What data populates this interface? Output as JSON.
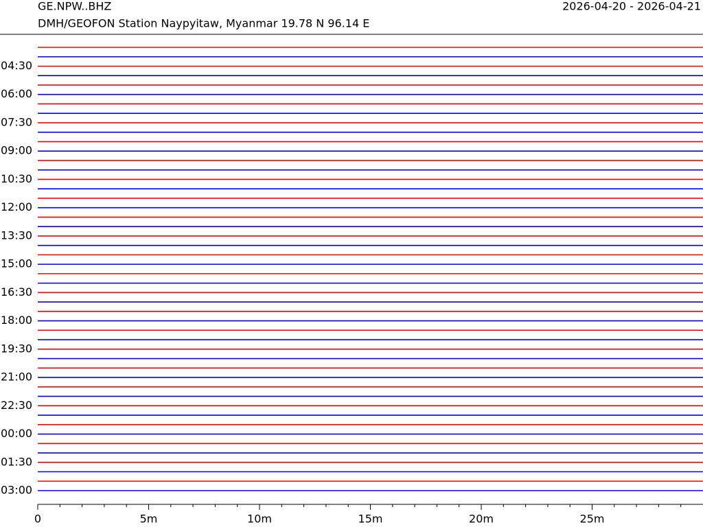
{
  "chart_data": {
    "type": "helicorder",
    "title": "GE.NPW..BHZ",
    "subtitle": "DMH/GEOFON Station Naypyitaw, Myanmar  19.78 N 96.14 E",
    "date_range": "2026-04-20 - 2026-04-21",
    "colors": [
      "#ff0000",
      "#0000ff"
    ],
    "row_step": 0.5,
    "ylim": [
      3.5,
      27
    ],
    "yticks": [
      {
        "value": 4.5,
        "label": "04:30"
      },
      {
        "value": 6,
        "label": "06:00"
      },
      {
        "value": 7.5,
        "label": "07:30"
      },
      {
        "value": 9,
        "label": "09:00"
      },
      {
        "value": 10.5,
        "label": "10:30"
      },
      {
        "value": 12,
        "label": "12:00"
      },
      {
        "value": 13.5,
        "label": "13:30"
      },
      {
        "value": 15,
        "label": "15:00"
      },
      {
        "value": 16.5,
        "label": "16:30"
      },
      {
        "value": 18,
        "label": "18:00"
      },
      {
        "value": 19.5,
        "label": "19:30"
      },
      {
        "value": 21,
        "label": "21:00"
      },
      {
        "value": 22.5,
        "label": "22:30"
      },
      {
        "value": 24,
        "label": "00:00"
      },
      {
        "value": 25.5,
        "label": "01:30"
      },
      {
        "value": 27,
        "label": "03:00"
      }
    ],
    "xlim": [
      0,
      30
    ],
    "xticks": [
      0,
      {
        "value": 5,
        "label": "5m"
      },
      {
        "value": 10,
        "label": "10m"
      },
      {
        "value": 15,
        "label": "15m"
      },
      {
        "value": 20,
        "label": "20m"
      },
      {
        "value": 25,
        "label": "25m"
      }
    ]
  }
}
